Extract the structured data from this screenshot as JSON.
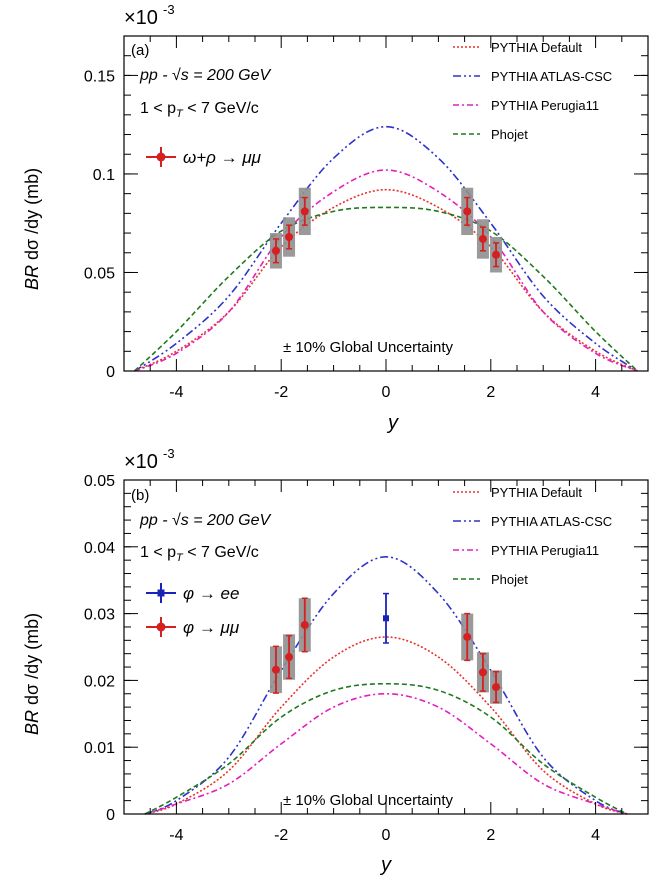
{
  "chart_data": [
    {
      "panel_label": "(a)",
      "type": "line",
      "multiplier": "×10",
      "multiplier_exp": "-3",
      "ylabel_prefix": "BR",
      "ylabel_rest": " dσ /dy (mb)",
      "xlabel": "y",
      "xlim": [
        -5,
        5
      ],
      "ylim": [
        0,
        0.17
      ],
      "xticks": [
        -4,
        -2,
        0,
        2,
        4
      ],
      "xtick_labels": [
        "-4",
        "-2",
        "0",
        "2",
        "4"
      ],
      "yticks": [
        0,
        0.05,
        0.1,
        0.15
      ],
      "ytick_labels": [
        "0",
        "0.05",
        "0.1",
        "0.15"
      ],
      "annotation_pp": "pp - √s = 200 GeV",
      "annotation_pt": "1 < p",
      "annotation_pt_sub": "T",
      "annotation_pt_rest": " < 7 GeV/c",
      "global_uncertainty": "± 10% Global Uncertainty",
      "legend": {
        "placement": "top-right",
        "entries": [
          {
            "label": "PYTHIA Default",
            "color": "#e8322a",
            "dash": "2,2"
          },
          {
            "label": "PYTHIA ATLAS-CSC",
            "color": "#2d33c9",
            "dash": "8,3,2,3,2,3"
          },
          {
            "label": "PYTHIA Perugia11",
            "color": "#e41ebd",
            "dash": "6,3,2,3"
          },
          {
            "label": "Phojet",
            "color": "#1f7a1f",
            "dash": "5,3"
          }
        ]
      },
      "series": [
        {
          "name": "PYTHIA Default",
          "color": "#e8322a",
          "dash": "2,2",
          "points": [
            [
              -4.8,
              0
            ],
            [
              -4,
              0.01
            ],
            [
              -3,
              0.03
            ],
            [
              -2,
              0.063
            ],
            [
              -1,
              0.083
            ],
            [
              0,
              0.092
            ],
            [
              1,
              0.083
            ],
            [
              2,
              0.063
            ],
            [
              3,
              0.03
            ],
            [
              4,
              0.01
            ],
            [
              4.8,
              0
            ]
          ]
        },
        {
          "name": "PYTHIA ATLAS-CSC",
          "color": "#2d33c9",
          "dash": "8,3,2,3,2,3",
          "points": [
            [
              -4.8,
              0
            ],
            [
              -4,
              0.014
            ],
            [
              -3,
              0.038
            ],
            [
              -2,
              0.075
            ],
            [
              -1,
              0.108
            ],
            [
              0,
              0.124
            ],
            [
              1,
              0.108
            ],
            [
              2,
              0.075
            ],
            [
              3,
              0.038
            ],
            [
              4,
              0.014
            ],
            [
              4.8,
              0
            ]
          ]
        },
        {
          "name": "PYTHIA Perugia11",
          "color": "#e41ebd",
          "dash": "6,3,2,3",
          "points": [
            [
              -4.8,
              0
            ],
            [
              -4,
              0.009
            ],
            [
              -3,
              0.03
            ],
            [
              -2,
              0.068
            ],
            [
              -1,
              0.091
            ],
            [
              0,
              0.102
            ],
            [
              1,
              0.091
            ],
            [
              2,
              0.068
            ],
            [
              3,
              0.03
            ],
            [
              4,
              0.009
            ],
            [
              4.8,
              0
            ]
          ]
        },
        {
          "name": "Phojet",
          "color": "#1f7a1f",
          "dash": "5,3",
          "points": [
            [
              -4.8,
              0
            ],
            [
              -4,
              0.02
            ],
            [
              -3,
              0.048
            ],
            [
              -2,
              0.071
            ],
            [
              -1,
              0.081
            ],
            [
              0,
              0.083
            ],
            [
              1,
              0.081
            ],
            [
              2,
              0.071
            ],
            [
              3,
              0.048
            ],
            [
              4,
              0.02
            ],
            [
              4.8,
              0
            ]
          ]
        }
      ],
      "data_series": [
        {
          "name_pre": "ω+ρ → μμ",
          "color": "#d42020",
          "marker": "circle",
          "points": [
            {
              "x": -2.1,
              "y": 0.061,
              "err": 0.006,
              "sys": 0.009
            },
            {
              "x": -1.85,
              "y": 0.068,
              "err": 0.006,
              "sys": 0.01
            },
            {
              "x": -1.55,
              "y": 0.081,
              "err": 0.007,
              "sys": 0.012
            },
            {
              "x": 1.55,
              "y": 0.081,
              "err": 0.007,
              "sys": 0.012
            },
            {
              "x": 1.85,
              "y": 0.067,
              "err": 0.006,
              "sys": 0.01
            },
            {
              "x": 2.1,
              "y": 0.059,
              "err": 0.006,
              "sys": 0.009
            }
          ]
        }
      ]
    },
    {
      "panel_label": "(b)",
      "type": "line",
      "multiplier": "×10",
      "multiplier_exp": "-3",
      "ylabel_prefix": "BR",
      "ylabel_rest": " dσ /dy (mb)",
      "xlabel": "y",
      "xlim": [
        -5,
        5
      ],
      "ylim": [
        0,
        0.05
      ],
      "xticks": [
        -4,
        -2,
        0,
        2,
        4
      ],
      "xtick_labels": [
        "-4",
        "-2",
        "0",
        "2",
        "4"
      ],
      "yticks": [
        0,
        0.01,
        0.02,
        0.03,
        0.04,
        0.05
      ],
      "ytick_labels": [
        "0",
        "0.01",
        "0.02",
        "0.03",
        "0.04",
        "0.05"
      ],
      "annotation_pp": "pp - √s = 200 GeV",
      "annotation_pt": "1 < p",
      "annotation_pt_sub": "T",
      "annotation_pt_rest": " < 7 GeV/c",
      "global_uncertainty": "± 10% Global Uncertainty",
      "legend": {
        "placement": "top-right",
        "entries": [
          {
            "label": "PYTHIA Default",
            "color": "#e8322a",
            "dash": "2,2"
          },
          {
            "label": "PYTHIA ATLAS-CSC",
            "color": "#2d33c9",
            "dash": "8,3,2,3,2,3"
          },
          {
            "label": "PYTHIA Perugia11",
            "color": "#e41ebd",
            "dash": "6,3,2,3"
          },
          {
            "label": "Phojet",
            "color": "#1f7a1f",
            "dash": "5,3"
          }
        ]
      },
      "series": [
        {
          "name": "PYTHIA Default",
          "color": "#e8322a",
          "dash": "2,2",
          "points": [
            [
              -4.6,
              0
            ],
            [
              -4,
              0.0015
            ],
            [
              -3,
              0.0065
            ],
            [
              -2,
              0.016
            ],
            [
              -1,
              0.0235
            ],
            [
              0,
              0.0265
            ],
            [
              1,
              0.0235
            ],
            [
              2,
              0.016
            ],
            [
              3,
              0.0065
            ],
            [
              4,
              0.0015
            ],
            [
              4.6,
              0
            ]
          ]
        },
        {
          "name": "PYTHIA ATLAS-CSC",
          "color": "#2d33c9",
          "dash": "8,3,2,3,2,3",
          "points": [
            [
              -4.6,
              0
            ],
            [
              -4,
              0.002
            ],
            [
              -3,
              0.0085
            ],
            [
              -2,
              0.0215
            ],
            [
              -1,
              0.033
            ],
            [
              0,
              0.0385
            ],
            [
              1,
              0.033
            ],
            [
              2,
              0.0215
            ],
            [
              3,
              0.0085
            ],
            [
              4,
              0.002
            ],
            [
              4.6,
              0
            ]
          ]
        },
        {
          "name": "PYTHIA Perugia11",
          "color": "#e41ebd",
          "dash": "6,3,2,3",
          "points": [
            [
              -4.6,
              0
            ],
            [
              -4,
              0.0015
            ],
            [
              -3,
              0.0045
            ],
            [
              -2,
              0.0105
            ],
            [
              -1,
              0.016
            ],
            [
              0,
              0.018
            ],
            [
              1,
              0.016
            ],
            [
              2,
              0.0105
            ],
            [
              3,
              0.0045
            ],
            [
              4,
              0.0015
            ],
            [
              4.6,
              0
            ]
          ]
        },
        {
          "name": "Phojet",
          "color": "#1f7a1f",
          "dash": "5,3",
          "points": [
            [
              -4.6,
              0
            ],
            [
              -4,
              0.0025
            ],
            [
              -3,
              0.0075
            ],
            [
              -2,
              0.0145
            ],
            [
              -1,
              0.0185
            ],
            [
              0,
              0.0195
            ],
            [
              1,
              0.0185
            ],
            [
              2,
              0.0145
            ],
            [
              3,
              0.0075
            ],
            [
              4,
              0.0025
            ],
            [
              4.6,
              0
            ]
          ]
        }
      ],
      "data_series": [
        {
          "name_pre": "φ → ee",
          "color": "#1a23b8",
          "marker": "square",
          "points": [
            {
              "x": 0.0,
              "y": 0.0293,
              "err": 0.0037,
              "sys": 0
            }
          ]
        },
        {
          "name_pre": "φ → μμ",
          "color": "#d42020",
          "marker": "circle",
          "points": [
            {
              "x": -2.1,
              "y": 0.0216,
              "err": 0.0035,
              "sys": 0.0035
            },
            {
              "x": -1.85,
              "y": 0.0235,
              "err": 0.0032,
              "sys": 0.0034
            },
            {
              "x": -1.55,
              "y": 0.0283,
              "err": 0.004,
              "sys": 0.004
            },
            {
              "x": 1.55,
              "y": 0.0265,
              "err": 0.0035,
              "sys": 0.0035
            },
            {
              "x": 1.85,
              "y": 0.0212,
              "err": 0.0028,
              "sys": 0.003
            },
            {
              "x": 2.1,
              "y": 0.019,
              "err": 0.0023,
              "sys": 0.0025
            }
          ]
        }
      ]
    }
  ]
}
